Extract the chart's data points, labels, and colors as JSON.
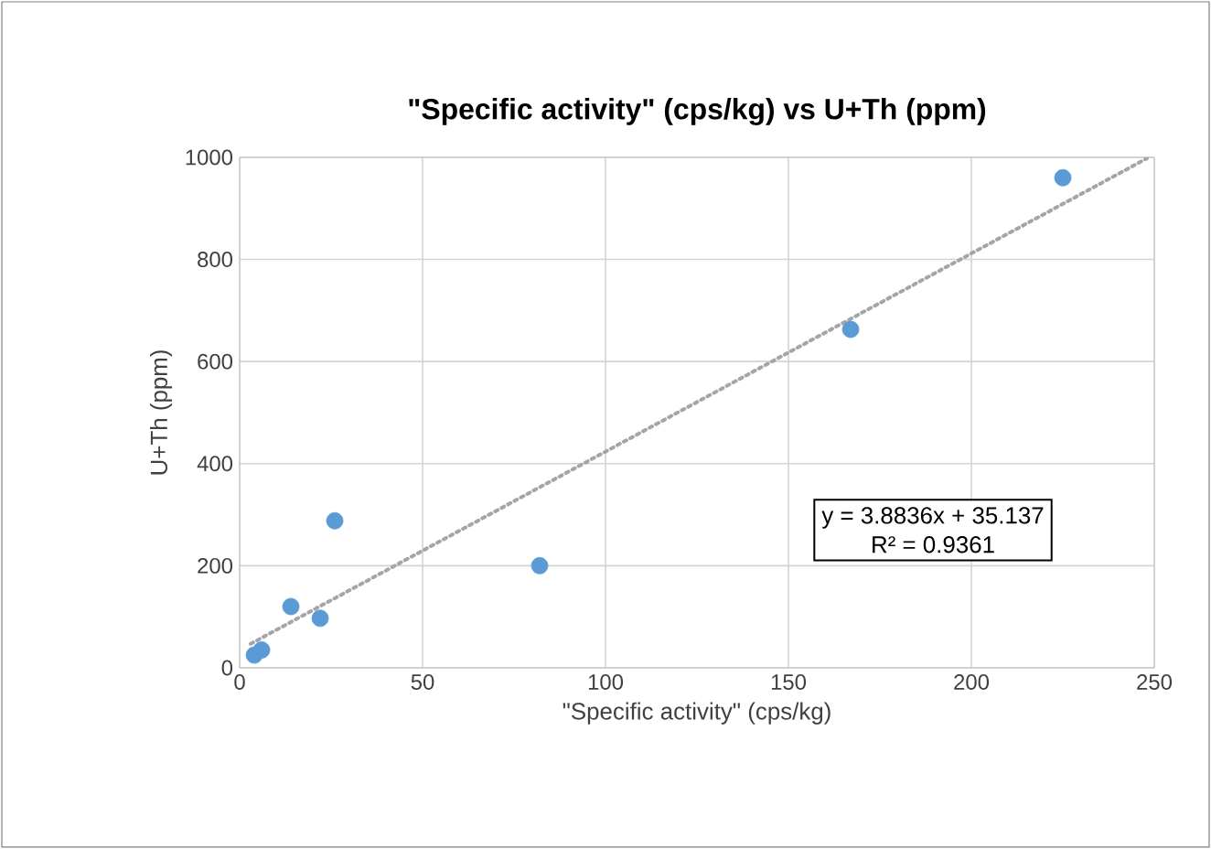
{
  "chart_data": {
    "type": "scatter",
    "title": "\"Specific activity\" (cps/kg) vs U+Th (ppm)",
    "xlabel": "\"Specific activity\" (cps/kg)",
    "ylabel": "U+Th (ppm)",
    "xlim": [
      0,
      250
    ],
    "ylim": [
      0,
      1000
    ],
    "xticks": [
      0,
      50,
      100,
      150,
      200,
      250
    ],
    "yticks": [
      0,
      200,
      400,
      600,
      800,
      1000
    ],
    "grid": true,
    "marker": "circle",
    "series": [
      {
        "color": "#5b9bd5",
        "x": [
          225,
          167,
          82,
          26,
          22,
          14,
          6,
          4
        ],
        "values": [
          960,
          663,
          200,
          288,
          97,
          120,
          35,
          25
        ]
      },
      {
        "type": "line",
        "color": "#a5a5a5",
        "line_style": "dotted",
        "marker": "none",
        "x": [
          3,
          248
        ],
        "values": [
          47,
          998
        ]
      }
    ],
    "annotations": [
      "y = 3.8836x + 35.137",
      "R² = 0.9361"
    ]
  }
}
